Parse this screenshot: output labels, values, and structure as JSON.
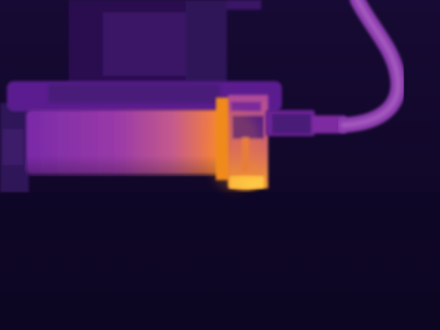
{
  "image": {
    "kind": "thermal-camera-frame",
    "palette": "ironbow"
  },
  "colors": {
    "background": "#0e0624",
    "cold": "#1a0a3a",
    "cool": "#3a1466",
    "mid": "#7a2aa8",
    "warm": "#a64a9c",
    "hot": "#f08a1c",
    "hottest": "#ffd84a"
  }
}
